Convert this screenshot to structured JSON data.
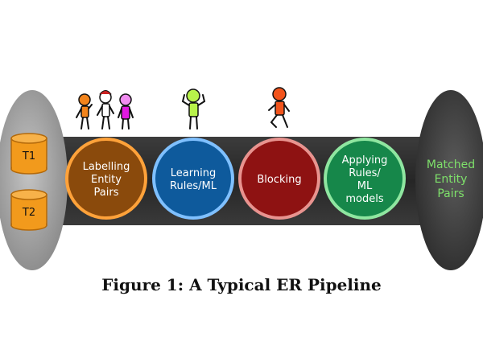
{
  "input_tables": [
    "T1",
    "T2"
  ],
  "stages": [
    {
      "lines": [
        "Labelling",
        "Entity",
        "Pairs"
      ],
      "fill": "#8a4a0c",
      "ring": "#ffa23a"
    },
    {
      "lines": [
        "Learning",
        "Rules/ML"
      ],
      "fill": "#0e5a9c",
      "ring": "#7fc0ff"
    },
    {
      "lines": [
        "Blocking"
      ],
      "fill": "#8e1212",
      "ring": "#e8938f"
    },
    {
      "lines": [
        "Applying",
        "Rules/",
        "ML",
        "models"
      ],
      "fill": "#16874a",
      "ring": "#8fe6a0"
    }
  ],
  "output": {
    "lines": [
      "Matched",
      "Entity",
      "Pairs"
    ],
    "text_color": "#7ee06a"
  },
  "caption": {
    "label": "Figure 1:",
    "title": "A Typical ER Pipeline"
  },
  "colors": {
    "pipe": "#2a2a2a",
    "cap_left": "#9a9a9a",
    "cap_right": "#4a4a4a",
    "cylinder": "#f29a1c",
    "cylinder_stroke": "#b3690a"
  }
}
